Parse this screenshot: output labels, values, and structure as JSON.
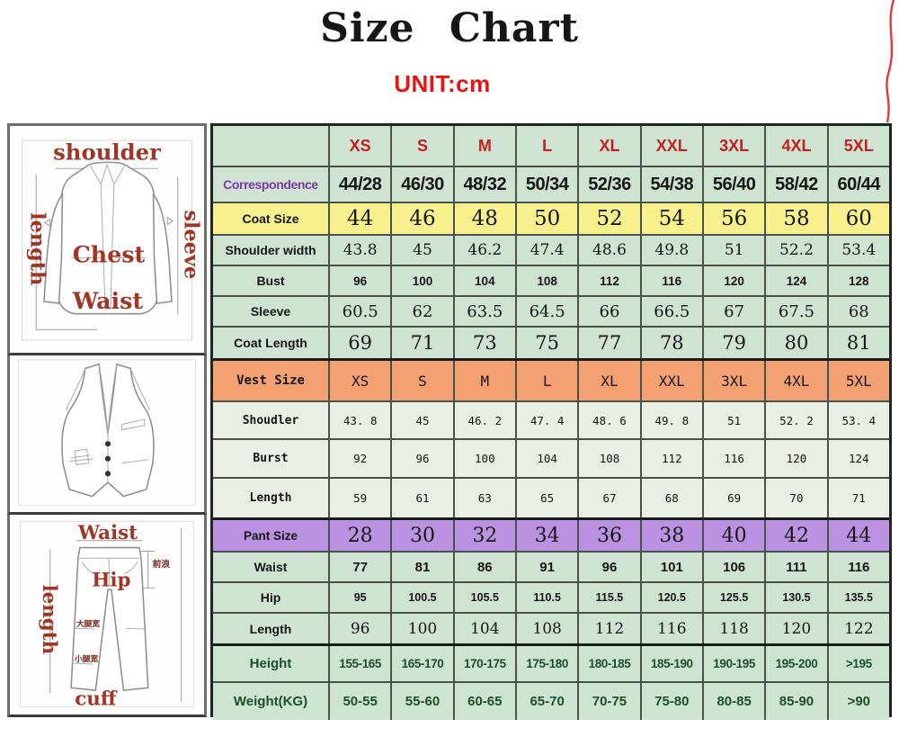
{
  "header": {
    "title": "Size Chart",
    "unit": "UNIT:cm"
  },
  "table": {
    "size_labels": [
      "XS",
      "S",
      "M",
      "L",
      "XL",
      "XXL",
      "3XL",
      "4XL",
      "5XL"
    ],
    "rows": [
      {
        "key": "sizes",
        "label": "",
        "values": [
          "XS",
          "S",
          "M",
          "L",
          "XL",
          "XXL",
          "3XL",
          "4XL",
          "5XL"
        ]
      },
      {
        "key": "correspondence",
        "label": "Correspondence",
        "values": [
          "44/28",
          "46/30",
          "48/32",
          "50/34",
          "52/36",
          "54/38",
          "56/40",
          "58/42",
          "60/44"
        ]
      },
      {
        "key": "coatsize",
        "label": "Coat Size",
        "values": [
          "44",
          "46",
          "48",
          "50",
          "52",
          "54",
          "56",
          "58",
          "60"
        ]
      },
      {
        "key": "shoulder",
        "label": "Shoulder width",
        "values": [
          "43.8",
          "45",
          "46.2",
          "47.4",
          "48.6",
          "49.8",
          "51",
          "52.2",
          "53.4"
        ]
      },
      {
        "key": "bust",
        "label": "Bust",
        "values": [
          "96",
          "100",
          "104",
          "108",
          "112",
          "116",
          "120",
          "124",
          "128"
        ]
      },
      {
        "key": "sleeve",
        "label": "Sleeve",
        "values": [
          "60.5",
          "62",
          "63.5",
          "64.5",
          "66",
          "66.5",
          "67",
          "67.5",
          "68"
        ]
      },
      {
        "key": "coatlength",
        "label": "Coat Length",
        "values": [
          "69",
          "71",
          "73",
          "75",
          "77",
          "78",
          "79",
          "80",
          "81"
        ]
      },
      {
        "key": "vestsize",
        "label": "Vest Size",
        "values": [
          "XS",
          "S",
          "M",
          "L",
          "XL",
          "XXL",
          "3XL",
          "4XL",
          "5XL"
        ]
      },
      {
        "key": "vshoulder",
        "label": "Shoudler",
        "values": [
          "43. 8",
          "45",
          "46. 2",
          "47. 4",
          "48. 6",
          "49. 8",
          "51",
          "52. 2",
          "53. 4"
        ]
      },
      {
        "key": "vburst",
        "label": "Burst",
        "values": [
          "92",
          "96",
          "100",
          "104",
          "108",
          "112",
          "116",
          "120",
          "124"
        ]
      },
      {
        "key": "vlength",
        "label": "Length",
        "values": [
          "59",
          "61",
          "63",
          "65",
          "67",
          "68",
          "69",
          "70",
          "71"
        ]
      },
      {
        "key": "pantsize",
        "label": "Pant Size",
        "values": [
          "28",
          "30",
          "32",
          "34",
          "36",
          "38",
          "40",
          "42",
          "44"
        ]
      },
      {
        "key": "waist",
        "label": "Waist",
        "values": [
          "77",
          "81",
          "86",
          "91",
          "96",
          "101",
          "106",
          "111",
          "116"
        ]
      },
      {
        "key": "hip",
        "label": "Hip",
        "values": [
          "95",
          "100.5",
          "105.5",
          "110.5",
          "115.5",
          "120.5",
          "125.5",
          "130.5",
          "135.5"
        ]
      },
      {
        "key": "plength",
        "label": "Length",
        "values": [
          "96",
          "100",
          "104",
          "108",
          "112",
          "116",
          "118",
          "120",
          "122"
        ]
      },
      {
        "key": "height",
        "label": "Height",
        "values": [
          "155-165",
          "165-170",
          "170-175",
          "175-180",
          "180-185",
          "185-190",
          "190-195",
          "195-200",
          ">195"
        ]
      },
      {
        "key": "weight",
        "label": "Weight(KG)",
        "values": [
          "50-55",
          "55-60",
          "60-65",
          "65-70",
          "70-75",
          "75-80",
          "80-85",
          "85-90",
          ">90"
        ]
      }
    ]
  },
  "illustrations": {
    "jacket": {
      "top": "shoulder",
      "left": "length",
      "right": "sleeve",
      "middle": "Chest",
      "lower": "Waist"
    },
    "pants": {
      "top": "Waist",
      "left": "length",
      "middle": "Hip",
      "bottom": "cuff",
      "front_rise": "前浪",
      "thigh": "大腿宽",
      "calf": "小腿宽"
    }
  },
  "colors": {
    "accent_red": "#e81414",
    "size_red": "#c32020",
    "correspondence_purple": "#7b3aa5",
    "coat_yellow": "#f7f08d",
    "vest_orange": "#f3a172",
    "pant_purple": "#bb92e2",
    "cell_green": "#cfe3d3",
    "vest_cell_green": "#e9efe4",
    "dark_green_text": "#1d4f29",
    "label_maroon": "#a03425"
  }
}
